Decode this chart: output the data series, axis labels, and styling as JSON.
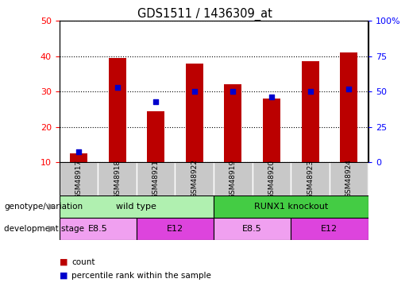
{
  "title": "GDS1511 / 1436309_at",
  "samples": [
    "GSM48917",
    "GSM48918",
    "GSM48921",
    "GSM48922",
    "GSM48919",
    "GSM48920",
    "GSM48923",
    "GSM48924"
  ],
  "count_values": [
    12.5,
    39.5,
    24.5,
    38.0,
    32.0,
    28.0,
    38.5,
    41.0
  ],
  "percentile_values": [
    7.5,
    53.0,
    43.0,
    50.0,
    50.0,
    46.0,
    50.0,
    52.0
  ],
  "ylim_left": [
    10,
    50
  ],
  "ylim_right": [
    0,
    100
  ],
  "yticks_left": [
    10,
    20,
    30,
    40,
    50
  ],
  "yticks_right": [
    0,
    25,
    50,
    75,
    100
  ],
  "ytick_labels_right": [
    "0",
    "25",
    "50",
    "75",
    "100%"
  ],
  "bar_color": "#bb0000",
  "dot_color": "#0000cc",
  "genotype_labels": [
    "wild type",
    "RUNX1 knockout"
  ],
  "genotype_colors": [
    "#b0f0b0",
    "#44cc44"
  ],
  "stage_labels": [
    "E8.5",
    "E12",
    "E8.5",
    "E12"
  ],
  "stage_colors": [
    "#f0a0f0",
    "#dd44dd",
    "#f0a0f0",
    "#dd44dd"
  ],
  "label_row1": "genotype/variation",
  "label_row2": "development stage",
  "legend_count": "count",
  "legend_percentile": "percentile rank within the sample",
  "sample_box_color": "#c8c8c8"
}
